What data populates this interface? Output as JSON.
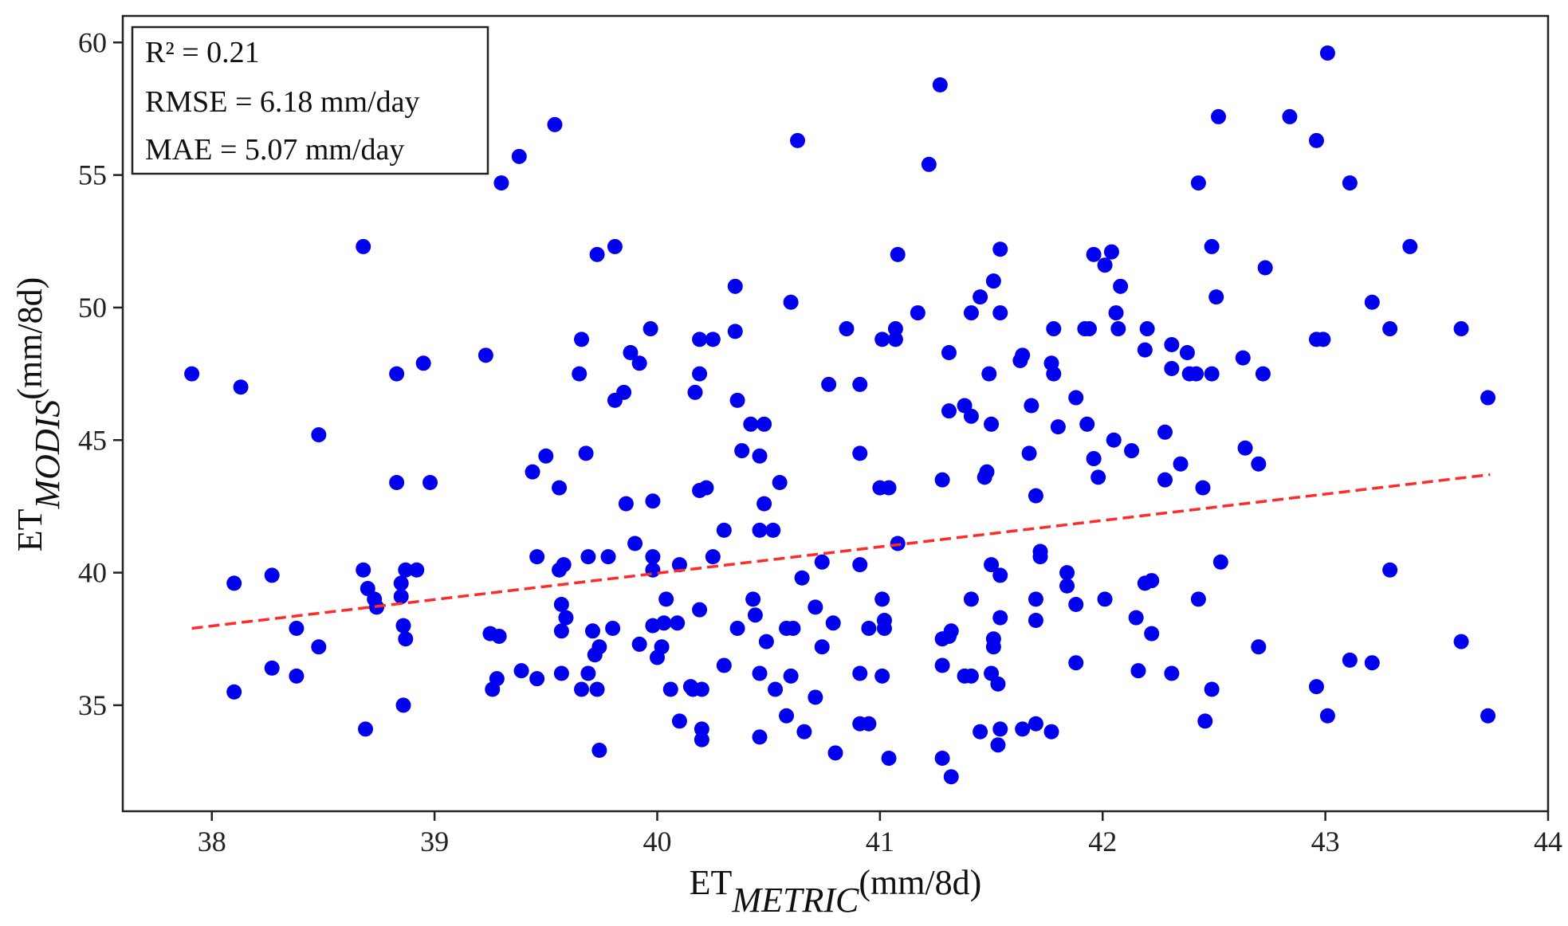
{
  "chart_data": {
    "type": "scatter",
    "title": "",
    "xlabel": {
      "main": "ET",
      "sub": "METRIC",
      "unit": "(mm/8d)"
    },
    "ylabel": {
      "main": "ET",
      "sub": "MODIS",
      "unit": "(mm/8d)"
    },
    "xlim": [
      37.6,
      44.0
    ],
    "ylim": [
      31.0,
      61.0
    ],
    "xticks": [
      38,
      39,
      40,
      41,
      42,
      43,
      44
    ],
    "yticks": [
      35,
      40,
      45,
      50,
      55,
      60
    ],
    "grid": false,
    "stats": [
      "R² = 0.21",
      "RMSE = 6.18 mm/day",
      "MAE = 5.07 mm/day"
    ],
    "point_color": "#0000ee",
    "trendline": {
      "color": "#ff2a2a",
      "style": "dashed",
      "x": [
        37.91,
        43.74
      ],
      "y": [
        37.9,
        43.7
      ]
    },
    "points": [
      [
        37.91,
        47.5
      ],
      [
        38.1,
        39.6
      ],
      [
        38.1,
        35.5
      ],
      [
        38.13,
        47.0
      ],
      [
        38.27,
        39.9
      ],
      [
        38.27,
        36.4
      ],
      [
        38.38,
        37.9
      ],
      [
        38.38,
        36.1
      ],
      [
        38.48,
        45.2
      ],
      [
        38.48,
        37.2
      ],
      [
        38.68,
        52.3
      ],
      [
        38.68,
        40.1
      ],
      [
        38.69,
        34.1
      ],
      [
        38.7,
        39.4
      ],
      [
        38.73,
        39.0
      ],
      [
        38.74,
        38.7
      ],
      [
        38.83,
        47.5
      ],
      [
        38.83,
        43.4
      ],
      [
        38.85,
        39.6
      ],
      [
        38.85,
        39.1
      ],
      [
        38.86,
        38.0
      ],
      [
        38.86,
        35.0
      ],
      [
        38.87,
        40.1
      ],
      [
        38.87,
        37.5
      ],
      [
        38.92,
        40.1
      ],
      [
        38.95,
        47.9
      ],
      [
        38.98,
        43.4
      ],
      [
        39.23,
        48.2
      ],
      [
        39.25,
        37.7
      ],
      [
        39.26,
        35.6
      ],
      [
        39.28,
        36.0
      ],
      [
        39.29,
        37.6
      ],
      [
        39.3,
        54.7
      ],
      [
        39.38,
        55.7
      ],
      [
        39.39,
        36.3
      ],
      [
        39.44,
        43.8
      ],
      [
        39.46,
        40.6
      ],
      [
        39.46,
        36.0
      ],
      [
        39.5,
        44.4
      ],
      [
        39.54,
        56.9
      ],
      [
        39.56,
        43.2
      ],
      [
        39.56,
        40.1
      ],
      [
        39.57,
        38.8
      ],
      [
        39.57,
        37.8
      ],
      [
        39.57,
        36.2
      ],
      [
        39.58,
        40.3
      ],
      [
        39.59,
        38.3
      ],
      [
        39.65,
        47.5
      ],
      [
        39.66,
        48.8
      ],
      [
        39.66,
        35.6
      ],
      [
        39.68,
        44.5
      ],
      [
        39.69,
        40.6
      ],
      [
        39.69,
        36.2
      ],
      [
        39.71,
        37.8
      ],
      [
        39.72,
        36.9
      ],
      [
        39.73,
        52.0
      ],
      [
        39.73,
        35.6
      ],
      [
        39.74,
        37.2
      ],
      [
        39.74,
        33.3
      ],
      [
        39.78,
        40.6
      ],
      [
        39.8,
        37.9
      ],
      [
        39.81,
        52.3
      ],
      [
        39.81,
        46.5
      ],
      [
        39.85,
        46.8
      ],
      [
        39.86,
        42.6
      ],
      [
        39.88,
        48.3
      ],
      [
        39.9,
        41.1
      ],
      [
        39.92,
        47.9
      ],
      [
        39.92,
        37.3
      ],
      [
        39.97,
        49.2
      ],
      [
        39.98,
        42.7
      ],
      [
        39.98,
        40.6
      ],
      [
        39.98,
        40.1
      ],
      [
        39.98,
        38.0
      ],
      [
        40.0,
        36.8
      ],
      [
        40.02,
        37.2
      ],
      [
        40.03,
        38.1
      ],
      [
        40.04,
        39.0
      ],
      [
        40.06,
        35.6
      ],
      [
        40.09,
        38.1
      ],
      [
        40.1,
        40.3
      ],
      [
        40.1,
        34.4
      ],
      [
        40.15,
        35.7
      ],
      [
        40.16,
        35.6
      ],
      [
        40.17,
        46.8
      ],
      [
        40.19,
        48.8
      ],
      [
        40.19,
        47.5
      ],
      [
        40.19,
        43.1
      ],
      [
        40.19,
        38.6
      ],
      [
        40.2,
        35.6
      ],
      [
        40.2,
        34.1
      ],
      [
        40.2,
        33.7
      ],
      [
        40.22,
        43.2
      ],
      [
        40.25,
        48.8
      ],
      [
        40.25,
        40.6
      ],
      [
        40.3,
        41.6
      ],
      [
        40.3,
        36.5
      ],
      [
        40.35,
        50.8
      ],
      [
        40.35,
        49.1
      ],
      [
        40.36,
        46.5
      ],
      [
        40.36,
        37.9
      ],
      [
        40.38,
        44.6
      ],
      [
        40.42,
        45.6
      ],
      [
        40.43,
        39.0
      ],
      [
        40.44,
        38.4
      ],
      [
        40.46,
        44.4
      ],
      [
        40.46,
        41.6
      ],
      [
        40.46,
        36.2
      ],
      [
        40.46,
        33.8
      ],
      [
        40.48,
        45.6
      ],
      [
        40.48,
        42.6
      ],
      [
        40.49,
        37.4
      ],
      [
        40.52,
        41.6
      ],
      [
        40.53,
        35.6
      ],
      [
        40.55,
        43.4
      ],
      [
        40.58,
        37.9
      ],
      [
        40.58,
        34.6
      ],
      [
        40.6,
        50.2
      ],
      [
        40.6,
        36.1
      ],
      [
        40.61,
        37.9
      ],
      [
        40.63,
        56.3
      ],
      [
        40.65,
        39.8
      ],
      [
        40.66,
        34.0
      ],
      [
        40.71,
        38.7
      ],
      [
        40.71,
        35.3
      ],
      [
        40.74,
        40.4
      ],
      [
        40.74,
        37.2
      ],
      [
        40.77,
        47.1
      ],
      [
        40.79,
        38.1
      ],
      [
        40.8,
        33.2
      ],
      [
        40.85,
        49.2
      ],
      [
        40.91,
        47.1
      ],
      [
        40.91,
        44.5
      ],
      [
        40.91,
        40.3
      ],
      [
        40.91,
        36.2
      ],
      [
        40.91,
        34.3
      ],
      [
        40.95,
        37.9
      ],
      [
        40.95,
        34.3
      ],
      [
        41.0,
        43.2
      ],
      [
        41.01,
        48.8
      ],
      [
        41.01,
        39.0
      ],
      [
        41.01,
        36.1
      ],
      [
        41.02,
        38.2
      ],
      [
        41.02,
        37.9
      ],
      [
        41.04,
        43.2
      ],
      [
        41.04,
        33.0
      ],
      [
        41.07,
        49.2
      ],
      [
        41.07,
        48.8
      ],
      [
        41.08,
        52.0
      ],
      [
        41.08,
        41.1
      ],
      [
        41.17,
        49.8
      ],
      [
        41.22,
        55.4
      ],
      [
        41.27,
        58.4
      ],
      [
        41.28,
        43.5
      ],
      [
        41.28,
        37.5
      ],
      [
        41.28,
        36.5
      ],
      [
        41.28,
        33.0
      ],
      [
        41.31,
        48.3
      ],
      [
        41.31,
        46.1
      ],
      [
        41.31,
        37.6
      ],
      [
        41.32,
        37.8
      ],
      [
        41.32,
        32.3
      ],
      [
        41.38,
        46.3
      ],
      [
        41.38,
        36.1
      ],
      [
        41.41,
        49.8
      ],
      [
        41.41,
        45.9
      ],
      [
        41.41,
        39.0
      ],
      [
        41.41,
        36.1
      ],
      [
        41.45,
        50.4
      ],
      [
        41.45,
        34.0
      ],
      [
        41.47,
        43.6
      ],
      [
        41.48,
        43.8
      ],
      [
        41.49,
        47.5
      ],
      [
        41.5,
        45.6
      ],
      [
        41.5,
        40.3
      ],
      [
        41.5,
        36.2
      ],
      [
        41.51,
        51.0
      ],
      [
        41.51,
        37.5
      ],
      [
        41.51,
        37.2
      ],
      [
        41.53,
        35.8
      ],
      [
        41.53,
        33.5
      ],
      [
        41.54,
        52.2
      ],
      [
        41.54,
        49.8
      ],
      [
        41.54,
        39.9
      ],
      [
        41.54,
        38.3
      ],
      [
        41.54,
        34.1
      ],
      [
        41.63,
        48.0
      ],
      [
        41.64,
        48.2
      ],
      [
        41.64,
        34.1
      ],
      [
        41.67,
        44.5
      ],
      [
        41.68,
        46.3
      ],
      [
        41.7,
        42.9
      ],
      [
        41.7,
        39.0
      ],
      [
        41.7,
        38.2
      ],
      [
        41.7,
        34.3
      ],
      [
        41.72,
        40.8
      ],
      [
        41.72,
        40.6
      ],
      [
        41.77,
        47.9
      ],
      [
        41.77,
        34.0
      ],
      [
        41.78,
        49.2
      ],
      [
        41.78,
        47.5
      ],
      [
        41.8,
        45.5
      ],
      [
        41.84,
        40.0
      ],
      [
        41.84,
        39.5
      ],
      [
        41.88,
        46.6
      ],
      [
        41.88,
        38.8
      ],
      [
        41.88,
        36.6
      ],
      [
        41.92,
        49.2
      ],
      [
        41.93,
        45.6
      ],
      [
        41.94,
        49.2
      ],
      [
        41.96,
        52.0
      ],
      [
        41.96,
        44.3
      ],
      [
        41.98,
        43.6
      ],
      [
        42.01,
        51.6
      ],
      [
        42.01,
        39.0
      ],
      [
        42.04,
        52.1
      ],
      [
        42.05,
        45.0
      ],
      [
        42.06,
        49.8
      ],
      [
        42.07,
        49.2
      ],
      [
        42.08,
        50.8
      ],
      [
        42.13,
        44.6
      ],
      [
        42.15,
        38.3
      ],
      [
        42.16,
        36.3
      ],
      [
        42.19,
        48.4
      ],
      [
        42.19,
        39.6
      ],
      [
        42.2,
        49.2
      ],
      [
        42.22,
        39.7
      ],
      [
        42.22,
        37.7
      ],
      [
        42.28,
        45.3
      ],
      [
        42.28,
        43.5
      ],
      [
        42.31,
        48.6
      ],
      [
        42.31,
        47.7
      ],
      [
        42.31,
        36.2
      ],
      [
        42.35,
        44.1
      ],
      [
        42.38,
        48.3
      ],
      [
        42.39,
        47.5
      ],
      [
        42.42,
        47.5
      ],
      [
        42.43,
        54.7
      ],
      [
        42.43,
        39.0
      ],
      [
        42.45,
        43.2
      ],
      [
        42.46,
        34.4
      ],
      [
        42.49,
        52.3
      ],
      [
        42.49,
        47.5
      ],
      [
        42.49,
        35.6
      ],
      [
        42.51,
        50.4
      ],
      [
        42.52,
        57.2
      ],
      [
        42.53,
        40.4
      ],
      [
        42.63,
        48.1
      ],
      [
        42.64,
        44.7
      ],
      [
        42.7,
        44.1
      ],
      [
        42.7,
        37.2
      ],
      [
        42.72,
        47.5
      ],
      [
        42.73,
        51.5
      ],
      [
        42.84,
        57.2
      ],
      [
        42.96,
        56.3
      ],
      [
        42.96,
        48.8
      ],
      [
        42.96,
        35.7
      ],
      [
        42.99,
        48.8
      ],
      [
        43.01,
        59.6
      ],
      [
        43.01,
        34.6
      ],
      [
        43.11,
        54.7
      ],
      [
        43.11,
        36.7
      ],
      [
        43.21,
        50.2
      ],
      [
        43.21,
        36.6
      ],
      [
        43.29,
        49.2
      ],
      [
        43.29,
        40.1
      ],
      [
        43.38,
        52.3
      ],
      [
        43.61,
        49.2
      ],
      [
        43.61,
        37.4
      ],
      [
        43.73,
        46.6
      ],
      [
        43.73,
        34.6
      ]
    ]
  }
}
